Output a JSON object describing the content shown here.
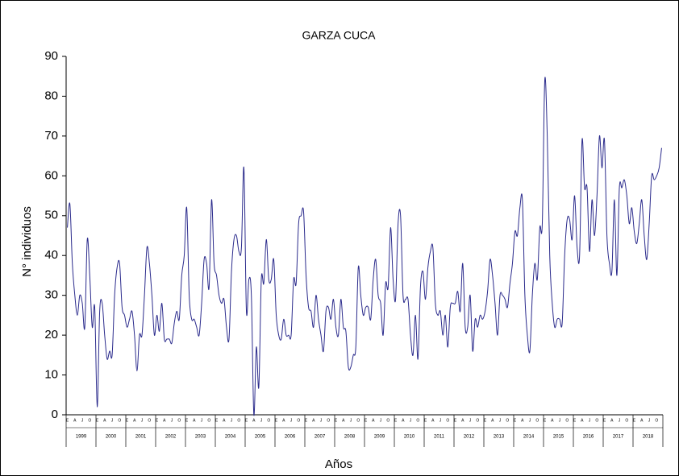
{
  "chart_data": {
    "type": "line",
    "title": "GARZA CUCA",
    "x_label": "Años",
    "y_label": "N° individuos",
    "color": "#2b2b8c",
    "ylim": [
      0,
      90
    ],
    "yticks": [
      0,
      10,
      20,
      30,
      40,
      50,
      60,
      70,
      80,
      90
    ],
    "month_labels": [
      "E",
      null,
      null,
      "A",
      null,
      null,
      "J",
      null,
      null,
      "O",
      null,
      null
    ],
    "years": [
      {
        "label": "1999",
        "values": [
          47,
          53,
          38,
          30,
          25,
          30,
          28,
          22,
          44,
          35,
          22,
          27
        ]
      },
      {
        "label": "2000",
        "values": [
          2,
          26,
          28,
          20,
          14,
          16,
          15,
          30,
          37,
          38,
          27,
          25
        ]
      },
      {
        "label": "2001",
        "values": [
          22,
          24,
          26,
          20,
          11,
          20,
          20,
          30,
          42,
          38,
          30,
          20
        ]
      },
      {
        "label": "2002",
        "values": [
          25,
          21,
          28,
          19,
          19,
          19,
          18,
          23,
          26,
          24,
          35,
          40
        ]
      },
      {
        "label": "2003",
        "values": [
          52,
          30,
          24,
          24,
          22,
          20,
          28,
          39,
          38,
          32,
          54,
          38
        ]
      },
      {
        "label": "2004",
        "values": [
          35,
          30,
          28,
          29,
          22,
          19,
          36,
          44,
          45,
          41,
          42,
          62
        ]
      },
      {
        "label": "2005",
        "values": [
          26,
          34,
          30,
          0,
          17,
          7,
          34,
          33,
          44,
          34,
          34,
          39
        ]
      },
      {
        "label": "2006",
        "values": [
          25,
          20,
          19,
          24,
          20,
          20,
          20,
          34,
          33,
          48,
          50,
          51
        ]
      },
      {
        "label": "2007",
        "values": [
          35,
          27,
          26,
          22,
          30,
          24,
          20,
          16,
          26,
          27,
          24,
          29
        ]
      },
      {
        "label": "2008",
        "values": [
          22,
          20,
          29,
          22,
          21,
          12,
          12,
          15,
          17,
          37,
          30,
          25
        ]
      },
      {
        "label": "2009",
        "values": [
          27,
          27,
          24,
          34,
          39,
          30,
          28,
          20,
          33,
          32,
          47,
          34
        ]
      },
      {
        "label": "2010",
        "values": [
          29,
          48,
          50,
          30,
          29,
          29,
          20,
          15,
          25,
          14,
          32,
          36
        ]
      },
      {
        "label": "2011",
        "values": [
          29,
          37,
          41,
          42,
          28,
          25,
          26,
          20,
          25,
          17,
          27,
          28
        ]
      },
      {
        "label": "2012",
        "values": [
          28,
          31,
          26,
          38,
          22,
          22,
          30,
          16,
          24,
          22,
          25,
          24
        ]
      },
      {
        "label": "2013",
        "values": [
          26,
          31,
          39,
          35,
          28,
          20,
          30,
          30,
          29,
          27,
          33,
          38
        ]
      },
      {
        "label": "2014",
        "values": [
          46,
          45,
          52,
          54,
          30,
          20,
          16,
          30,
          38,
          34,
          47,
          48
        ]
      },
      {
        "label": "2015",
        "values": [
          84,
          70,
          40,
          28,
          22,
          24,
          24,
          23,
          40,
          49,
          49,
          44
        ]
      },
      {
        "label": "2016",
        "values": [
          55,
          42,
          40,
          69,
          57,
          57,
          41,
          54,
          45,
          55,
          70,
          62
        ]
      },
      {
        "label": "2017",
        "values": [
          69,
          45,
          38,
          36,
          54,
          35,
          57,
          57,
          59,
          55,
          48,
          52
        ]
      },
      {
        "label": "2018",
        "values": [
          46,
          43,
          48,
          54,
          45,
          39,
          48,
          60,
          59,
          60,
          62,
          67
        ]
      }
    ]
  }
}
